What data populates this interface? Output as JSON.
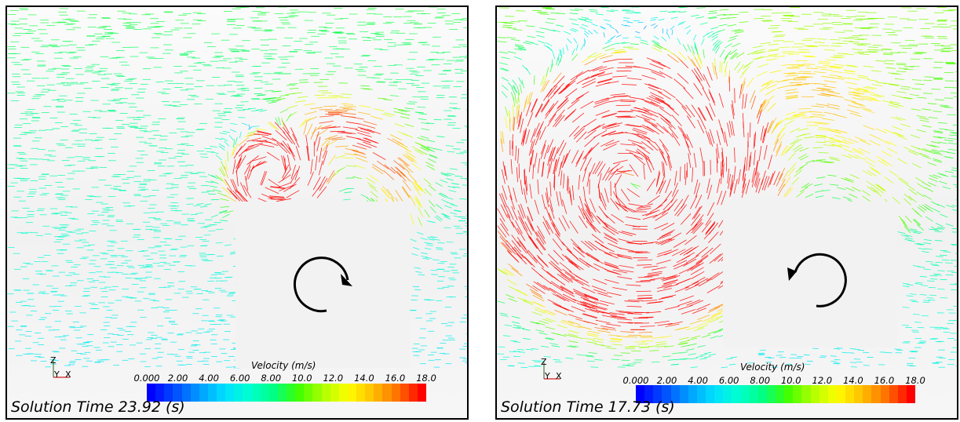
{
  "panels": [
    {
      "id": "left",
      "solution_time": "Solution Time 23.92 (s)",
      "rotation": "clockwise",
      "velocity_label": "Velocity (m/s)",
      "colorbar_ticks": [
        "0.000",
        "2.00",
        "4.00",
        "6.00",
        "8.00",
        "10.0",
        "12.0",
        "14.0",
        "16.0",
        "18.0"
      ],
      "axes": {
        "z": "Z",
        "y": "Y",
        "x": "X"
      }
    },
    {
      "id": "right",
      "solution_time": "Solution Time 17.73 (s)",
      "rotation": "counterclockwise",
      "velocity_label": "Velocity (m/s)",
      "colorbar_ticks": [
        "0.000",
        "2.00",
        "4.00",
        "6.00",
        "8.00",
        "10.0",
        "12.0",
        "14.0",
        "16.0",
        "18.0"
      ],
      "axes": {
        "z": "Z",
        "y": "Y",
        "x": "X"
      }
    }
  ],
  "colormap": [
    "#0000ff",
    "#0050ff",
    "#00a0ff",
    "#00e0ff",
    "#00ffd0",
    "#00ff80",
    "#40ff00",
    "#b0ff00",
    "#ffff00",
    "#ffc000",
    "#ff7000",
    "#ff0000"
  ]
}
